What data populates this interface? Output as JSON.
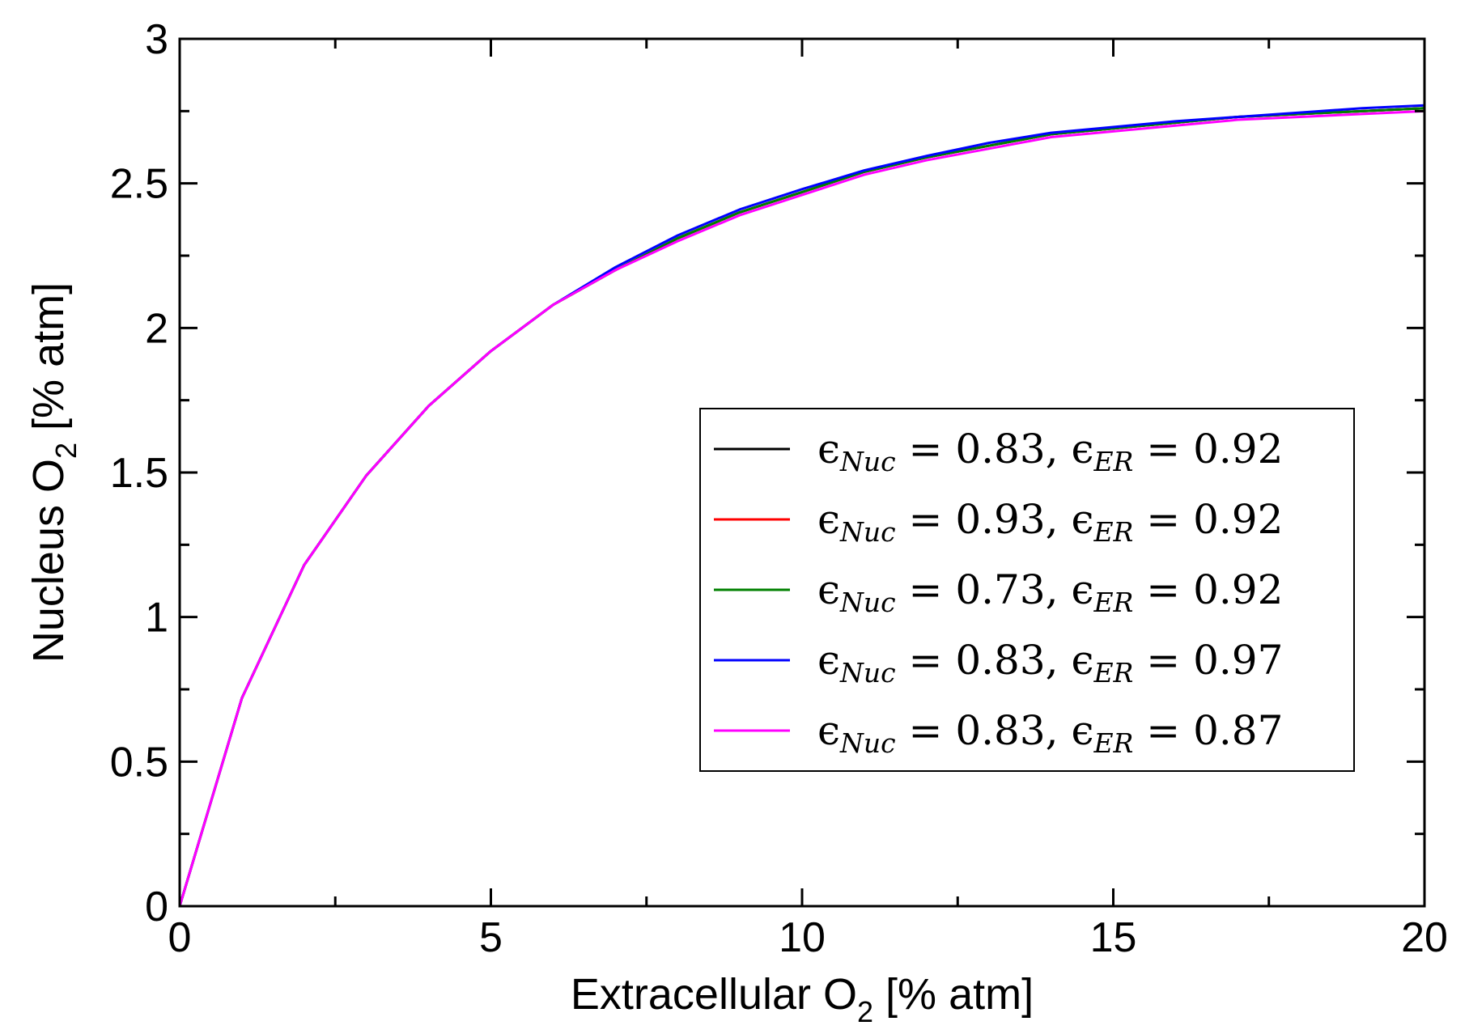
{
  "chart_data": {
    "type": "line",
    "title": "",
    "xlabel": {
      "main": "Extracellular O",
      "sub": "2",
      "unit": " [% atm]"
    },
    "ylabel": {
      "main": "Nucleus O",
      "sub": "2",
      "unit": " [% atm]"
    },
    "xlim": [
      0,
      20
    ],
    "ylim": [
      0,
      3
    ],
    "xticks": [
      0,
      5,
      10,
      15,
      20
    ],
    "xtick_labels": [
      "0",
      "5",
      "10",
      "15",
      "20"
    ],
    "yticks": [
      0,
      0.5,
      1,
      1.5,
      2,
      2.5,
      3
    ],
    "ytick_labels": [
      "0",
      "0.5",
      "1",
      "1.5",
      "2",
      "2.5",
      "3"
    ],
    "grid": false,
    "legend_position": "center-right",
    "x": [
      0,
      1,
      2,
      3,
      4,
      5,
      6,
      7,
      8,
      9,
      10,
      11,
      12,
      13,
      14,
      15,
      16,
      17,
      18,
      19,
      20
    ],
    "series": [
      {
        "name": "ε_Nuc = 0.83, ε_ER = 0.92",
        "legend": {
          "e1": "ϵ",
          "s1": "Nuc",
          "v1": " = 0.83, ",
          "e2": "ϵ",
          "s2": "ER",
          "v2": " = 0.92"
        },
        "color": "#000000",
        "values": [
          0,
          0.72,
          1.18,
          1.49,
          1.73,
          1.92,
          2.08,
          2.2,
          2.31,
          2.4,
          2.47,
          2.54,
          2.59,
          2.63,
          2.67,
          2.69,
          2.71,
          2.73,
          2.74,
          2.75,
          2.76
        ]
      },
      {
        "name": "ε_Nuc = 0.93, ε_ER = 0.92",
        "legend": {
          "e1": "ϵ",
          "s1": "Nuc",
          "v1": " = 0.93, ",
          "e2": "ϵ",
          "s2": "ER",
          "v2": " = 0.92"
        },
        "color": "#ff0000",
        "values": [
          0,
          0.72,
          1.18,
          1.49,
          1.73,
          1.92,
          2.08,
          2.2,
          2.31,
          2.4,
          2.47,
          2.54,
          2.59,
          2.63,
          2.67,
          2.69,
          2.71,
          2.73,
          2.74,
          2.75,
          2.76
        ]
      },
      {
        "name": "ε_Nuc = 0.73, ε_ER = 0.92",
        "legend": {
          "e1": "ϵ",
          "s1": "Nuc",
          "v1": " = 0.73, ",
          "e2": "ϵ",
          "s2": "ER",
          "v2": " = 0.92"
        },
        "color": "#008000",
        "values": [
          0,
          0.72,
          1.18,
          1.49,
          1.73,
          1.92,
          2.08,
          2.2,
          2.31,
          2.4,
          2.47,
          2.54,
          2.59,
          2.63,
          2.67,
          2.69,
          2.71,
          2.73,
          2.74,
          2.75,
          2.76
        ]
      },
      {
        "name": "ε_Nuc = 0.83, ε_ER = 0.97",
        "legend": {
          "e1": "ϵ",
          "s1": "Nuc",
          "v1": " = 0.83, ",
          "e2": "ϵ",
          "s2": "ER",
          "v2": " = 0.97"
        },
        "color": "#0000ff",
        "values": [
          0,
          0.72,
          1.18,
          1.49,
          1.73,
          1.92,
          2.08,
          2.21,
          2.32,
          2.41,
          2.48,
          2.545,
          2.595,
          2.64,
          2.675,
          2.695,
          2.715,
          2.73,
          2.745,
          2.76,
          2.77
        ]
      },
      {
        "name": "ε_Nuc = 0.83, ε_ER = 0.87",
        "legend": {
          "e1": "ϵ",
          "s1": "Nuc",
          "v1": " = 0.83, ",
          "e2": "ϵ",
          "s2": "ER",
          "v2": " = 0.87"
        },
        "color": "#ff00ff",
        "values": [
          0,
          0.72,
          1.18,
          1.49,
          1.73,
          1.92,
          2.08,
          2.2,
          2.3,
          2.39,
          2.46,
          2.53,
          2.58,
          2.62,
          2.66,
          2.68,
          2.7,
          2.72,
          2.73,
          2.74,
          2.75
        ]
      }
    ]
  }
}
